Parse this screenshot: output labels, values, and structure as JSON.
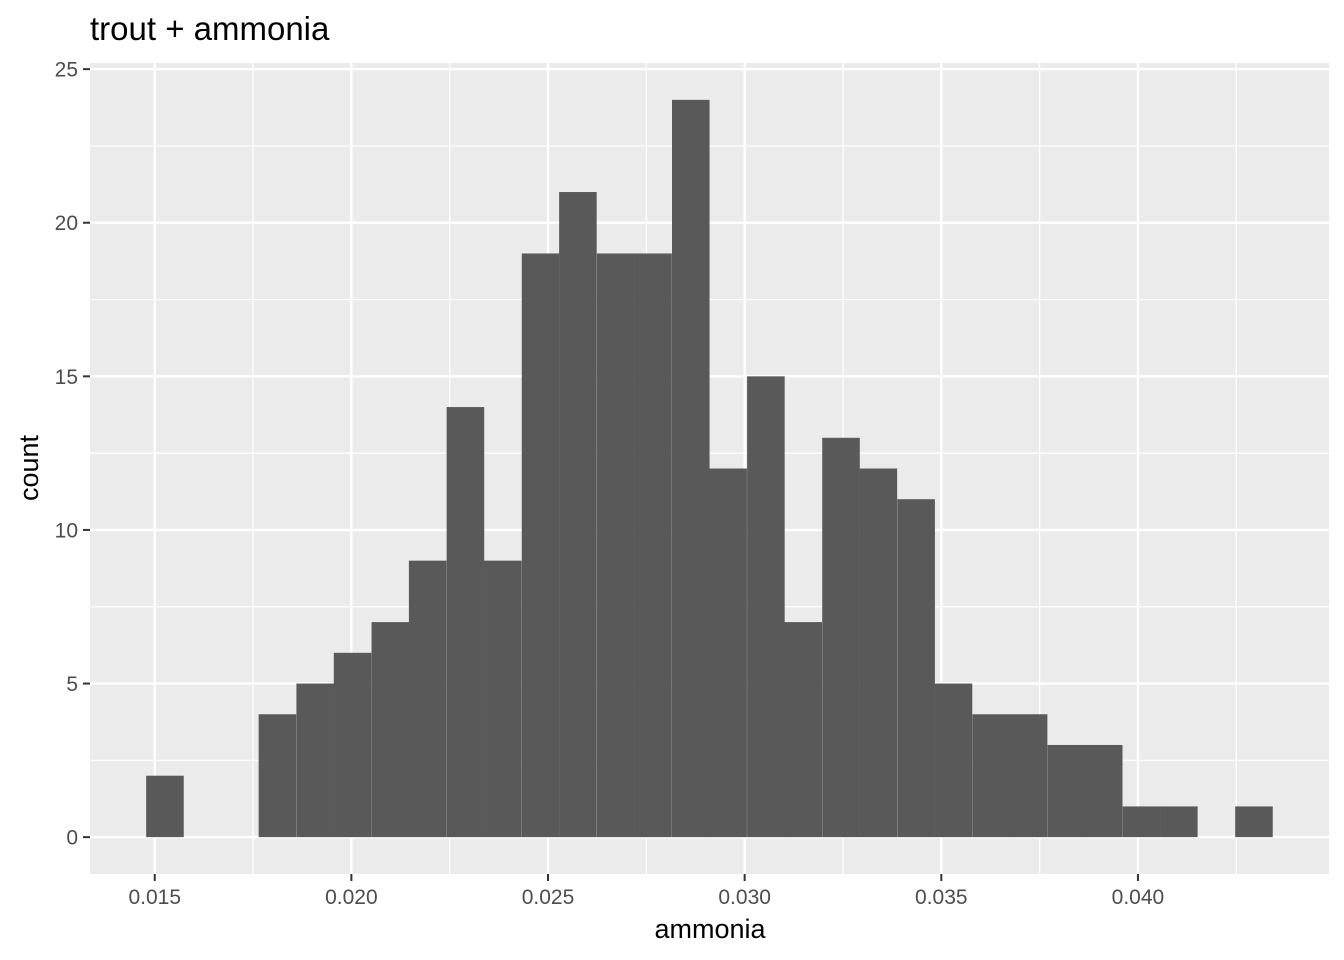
{
  "chart_data": {
    "type": "bar",
    "title": "trout + ammonia",
    "xlabel": "ammonia",
    "ylabel": "count",
    "bin_width": 0.000955,
    "bins": [
      {
        "x": 0.01526,
        "count": 2
      },
      {
        "x": 0.01621,
        "count": 0
      },
      {
        "x": 0.01717,
        "count": 0
      },
      {
        "x": 0.01812,
        "count": 4
      },
      {
        "x": 0.01908,
        "count": 5
      },
      {
        "x": 0.02003,
        "count": 6
      },
      {
        "x": 0.02099,
        "count": 7
      },
      {
        "x": 0.02194,
        "count": 9
      },
      {
        "x": 0.0229,
        "count": 14
      },
      {
        "x": 0.02385,
        "count": 9
      },
      {
        "x": 0.02481,
        "count": 19
      },
      {
        "x": 0.02576,
        "count": 21
      },
      {
        "x": 0.02672,
        "count": 19
      },
      {
        "x": 0.02767,
        "count": 19
      },
      {
        "x": 0.02863,
        "count": 24
      },
      {
        "x": 0.02958,
        "count": 12
      },
      {
        "x": 0.03054,
        "count": 15
      },
      {
        "x": 0.03149,
        "count": 7
      },
      {
        "x": 0.03245,
        "count": 13
      },
      {
        "x": 0.0334,
        "count": 12
      },
      {
        "x": 0.03436,
        "count": 11
      },
      {
        "x": 0.03531,
        "count": 5
      },
      {
        "x": 0.03627,
        "count": 4
      },
      {
        "x": 0.03722,
        "count": 4
      },
      {
        "x": 0.03818,
        "count": 3
      },
      {
        "x": 0.03913,
        "count": 3
      },
      {
        "x": 0.04009,
        "count": 1
      },
      {
        "x": 0.04104,
        "count": 1
      },
      {
        "x": 0.042,
        "count": 0
      },
      {
        "x": 0.04295,
        "count": 1
      }
    ],
    "x_ticks": [
      0.015,
      0.02,
      0.025,
      0.03,
      0.035,
      0.04
    ],
    "x_tick_labels": [
      "0.015",
      "0.020",
      "0.025",
      "0.030",
      "0.035",
      "0.040"
    ],
    "y_ticks": [
      0,
      5,
      10,
      15,
      20,
      25
    ],
    "y_tick_labels": [
      "0",
      "5",
      "10",
      "15",
      "20",
      "25"
    ],
    "xlim": [
      0.013354,
      0.044858
    ],
    "ylim": [
      -1.2,
      25.2
    ],
    "grid": true,
    "legend": "none",
    "colors": {
      "panel_background": "#ebebeb",
      "grid_line": "#ffffff",
      "bar_fill": "#595959",
      "tick_mark": "#333333"
    }
  }
}
